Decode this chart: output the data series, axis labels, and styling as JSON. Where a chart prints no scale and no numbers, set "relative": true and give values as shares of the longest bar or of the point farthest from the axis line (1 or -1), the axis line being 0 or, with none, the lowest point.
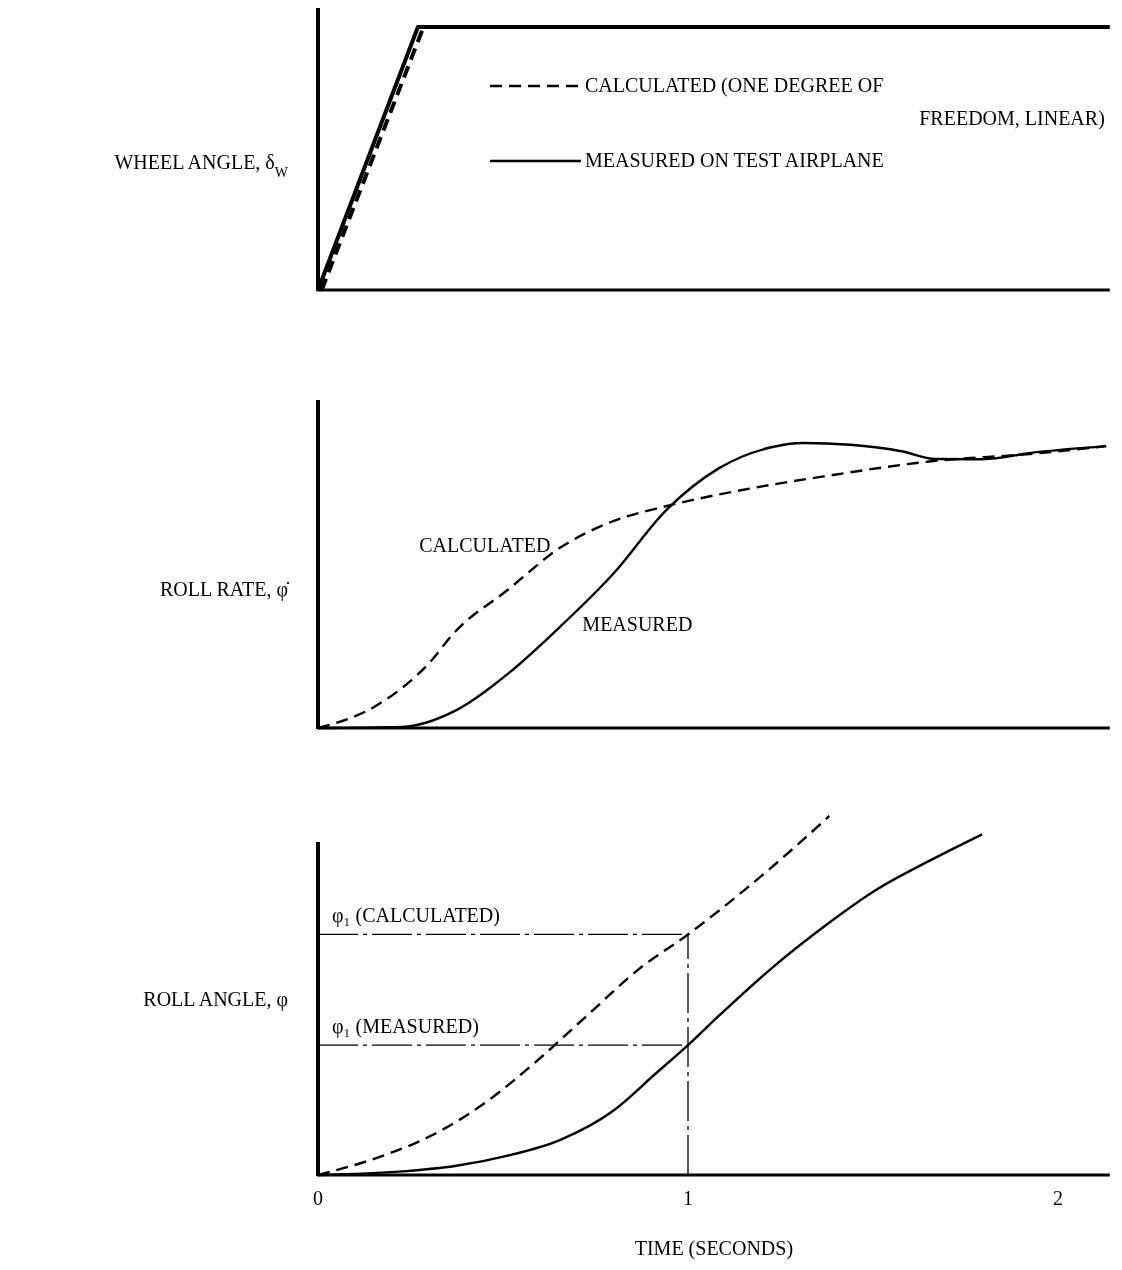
{
  "chart_data": [
    {
      "type": "line",
      "ylabel": "WHEEL ANGLE, δ$_{W}$",
      "relative": true,
      "xlim": [
        0,
        2.14
      ],
      "tick_labels": false,
      "legend": "right",
      "series": [
        {
          "name": "CALCULATED (ONE DEGREE OF FREEDOM, LINEAR)",
          "color": "#000000",
          "line_style": "dashed",
          "x": [
            0.01,
            0.285,
            2.14
          ],
          "values": [
            0,
            1,
            1
          ]
        },
        {
          "name": "MEASURED ON TEST AIRPLANE",
          "color": "#000000",
          "line_style": "solid",
          "x": [
            0,
            0.27,
            2.14
          ],
          "values": [
            0,
            1,
            1
          ]
        }
      ]
    },
    {
      "type": "line",
      "ylabel": "ROLL RATE, φ̇",
      "relative": true,
      "xlim": [
        0,
        2.14
      ],
      "tick_labels": false,
      "series": [
        {
          "name": "CALCULATED",
          "color": "#000000",
          "line_style": "dashed",
          "x": [
            0,
            0.157,
            0.299,
            0.37,
            0.513,
            0.655,
            0.798,
            0.94,
            1.154,
            1.368,
            1.652,
            1.937,
            2.13
          ],
          "values": [
            0,
            0.078,
            0.226,
            0.337,
            0.485,
            0.633,
            0.726,
            0.778,
            0.837,
            0.883,
            0.935,
            0.963,
            0.989
          ]
        },
        {
          "name": "MEASURED",
          "color": "#000000",
          "line_style": "solid",
          "x": [
            0,
            0.228,
            0.37,
            0.513,
            0.655,
            0.798,
            0.94,
            1.083,
            1.225,
            1.311,
            1.439,
            1.581,
            1.667,
            1.795,
            1.937,
            2.13
          ],
          "values": [
            0,
            0.004,
            0.06,
            0.19,
            0.356,
            0.541,
            0.763,
            0.911,
            0.985,
            1,
            0.994,
            0.97,
            0.944,
            0.943,
            0.967,
            0.989
          ]
        }
      ]
    },
    {
      "type": "line",
      "ylabel": "ROLL ANGLE, φ",
      "xlabel": "TIME (SECONDS)",
      "relative": true,
      "xlim": [
        0,
        2.14
      ],
      "xticks": [
        0,
        1,
        2
      ],
      "tick_labels": "x",
      "ref_lines": [
        {
          "axis": "y",
          "value": 0.67,
          "label": "φ₁ (CALCULATED)",
          "line_style": "dashed"
        },
        {
          "axis": "y",
          "value": 0.362,
          "label": "φ₁ (MEASURED)",
          "line_style": "dashed"
        },
        {
          "axis": "x",
          "value": 1,
          "line_style": "dashed"
        }
      ],
      "series": [
        {
          "color": "#000000",
          "line_style": "dashed",
          "x": [
            0,
            0.157,
            0.299,
            0.442,
            0.584,
            0.726,
            0.869,
            1,
            1.154,
            1.296,
            1.382
          ],
          "values": [
            0,
            0.047,
            0.106,
            0.194,
            0.311,
            0.443,
            0.575,
            0.67,
            0.795,
            0.92,
            1
          ]
        },
        {
          "color": "#000000",
          "line_style": "solid",
          "x": [
            0,
            0.228,
            0.37,
            0.513,
            0.655,
            0.798,
            0.912,
            1,
            1.083,
            1.225,
            1.368,
            1.51,
            1.652,
            1.795
          ],
          "values": [
            0,
            0.01,
            0.025,
            0.054,
            0.098,
            0.179,
            0.282,
            0.362,
            0.443,
            0.575,
            0.692,
            0.795,
            0.875,
            0.949
          ]
        }
      ]
    }
  ]
}
